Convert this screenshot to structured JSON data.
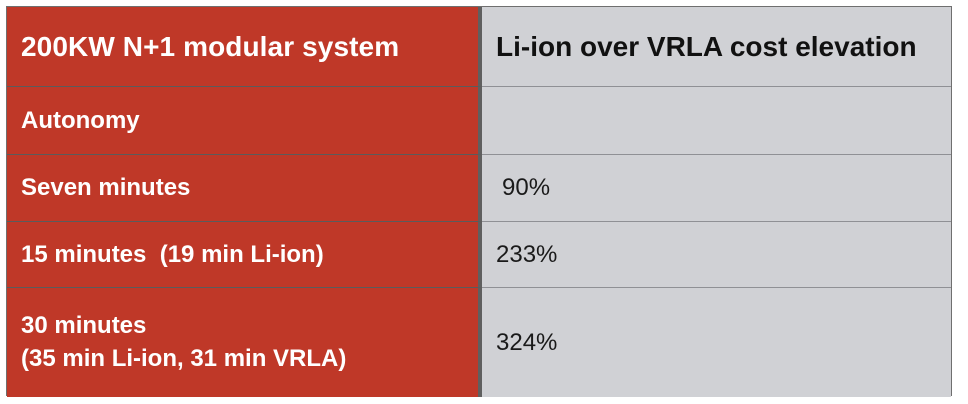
{
  "table": {
    "header": {
      "left": "200KW N+1 modular system",
      "right": "Li-ion over VRLA cost elevation"
    },
    "rows": [
      {
        "left": "Autonomy",
        "right": ""
      },
      {
        "left": "Seven minutes",
        "right": "90%"
      },
      {
        "left": "15 minutes  (19 min Li-ion)",
        "right": "233%"
      },
      {
        "left_line1": "30 minutes",
        "left_line2": "(35 min Li-ion, 31 min VRLA)",
        "right": "324%"
      }
    ]
  },
  "colors": {
    "left_column": "#bf3828",
    "right_column": "#d0d1d5",
    "divider": "#5f5f5f"
  }
}
